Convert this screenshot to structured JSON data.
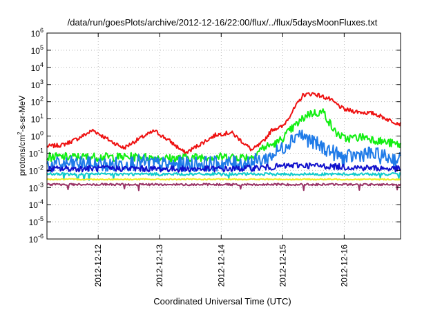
{
  "chart_data": {
    "type": "line",
    "title": "/data/run/goesPlots/archive/2012-12-16/22:00/flux/../flux/5daysMoonFluxes.txt",
    "xlabel": "Coordinated Universal Time (UTC)",
    "ylabel": {
      "base": "protons/cm",
      "sup": "2",
      "rest": "-s-sr-MeV"
    },
    "y_scale": "log",
    "ylim": [
      1e-06,
      1000000.0
    ],
    "xlim": [
      "2012-12-11 04:00",
      "2012-12-16 22:00"
    ],
    "grid": true,
    "legend": "none",
    "y_ticks": [
      {
        "value": 1e-06,
        "base": "10",
        "exp": "-6"
      },
      {
        "value": 1e-05,
        "base": "10",
        "exp": "-5"
      },
      {
        "value": 0.0001,
        "base": "10",
        "exp": "-4"
      },
      {
        "value": 0.001,
        "base": "10",
        "exp": "-3"
      },
      {
        "value": 0.01,
        "base": "10",
        "exp": "-2"
      },
      {
        "value": 0.1,
        "base": "10",
        "exp": "-1"
      },
      {
        "value": 1,
        "base": "10",
        "exp": "0"
      },
      {
        "value": 10,
        "base": "10",
        "exp": "1"
      },
      {
        "value": 100,
        "base": "10",
        "exp": "2"
      },
      {
        "value": 1000,
        "base": "10",
        "exp": "3"
      },
      {
        "value": 10000,
        "base": "10",
        "exp": "4"
      },
      {
        "value": 100000,
        "base": "10",
        "exp": "5"
      },
      {
        "value": 1000000,
        "base": "10",
        "exp": "6"
      }
    ],
    "x_ticks": [
      "2012-12-12",
      "2012-12-13",
      "2012-12-14",
      "2012-12-15",
      "2012-12-16"
    ],
    "series": [
      {
        "color": "#ee1111",
        "noise": 0.12,
        "x": [
          "2012-12-11 04:00",
          "2012-12-11 10:00",
          "2012-12-11 16:00",
          "2012-12-11 22:00",
          "2012-12-12 04:00",
          "2012-12-12 10:00",
          "2012-12-12 16:00",
          "2012-12-12 22:00",
          "2012-12-13 04:00",
          "2012-12-13 10:00",
          "2012-12-13 16:00",
          "2012-12-13 22:00",
          "2012-12-14 04:00",
          "2012-12-14 08:00",
          "2012-12-14 12:00",
          "2012-12-14 16:00",
          "2012-12-14 20:00",
          "2012-12-15 00:00",
          "2012-12-15 04:00",
          "2012-12-15 08:00",
          "2012-12-15 12:00",
          "2012-12-15 18:00",
          "2012-12-16 00:00",
          "2012-12-16 06:00",
          "2012-12-16 12:00",
          "2012-12-16 18:00",
          "2012-12-16 22:00"
        ],
        "y": [
          0.25,
          0.3,
          0.7,
          2.2,
          0.6,
          0.2,
          0.7,
          2.0,
          0.5,
          0.1,
          0.35,
          1.2,
          1.6,
          0.5,
          0.15,
          0.4,
          2.5,
          3.5,
          30,
          250,
          300,
          150,
          35,
          25,
          20,
          8,
          5
        ]
      },
      {
        "color": "#11ee11",
        "noise": 0.25,
        "x": [
          "2012-12-11 04:00",
          "2012-12-11 16:00",
          "2012-12-12 04:00",
          "2012-12-12 16:00",
          "2012-12-13 04:00",
          "2012-12-13 16:00",
          "2012-12-14 04:00",
          "2012-12-14 12:00",
          "2012-12-14 16:00",
          "2012-12-14 22:00",
          "2012-12-15 04:00",
          "2012-12-15 10:00",
          "2012-12-15 16:00",
          "2012-12-15 20:00",
          "2012-12-16 00:00",
          "2012-12-16 08:00",
          "2012-12-16 14:00",
          "2012-12-16 22:00"
        ],
        "y": [
          0.06,
          0.06,
          0.06,
          0.06,
          0.05,
          0.06,
          0.06,
          0.06,
          0.2,
          0.4,
          3,
          20,
          25,
          2,
          0.7,
          0.9,
          0.5,
          0.3
        ]
      },
      {
        "color": "#1f7be8",
        "noise": 0.45,
        "x": [
          "2012-12-11 04:00",
          "2012-12-11 16:00",
          "2012-12-12 04:00",
          "2012-12-12 16:00",
          "2012-12-13 04:00",
          "2012-12-13 16:00",
          "2012-12-14 04:00",
          "2012-12-14 12:00",
          "2012-12-14 18:00",
          "2012-12-15 00:00",
          "2012-12-15 06:00",
          "2012-12-15 12:00",
          "2012-12-15 18:00",
          "2012-12-16 00:00",
          "2012-12-16 08:00",
          "2012-12-16 16:00",
          "2012-12-16 22:00"
        ],
        "y": [
          0.02,
          0.025,
          0.02,
          0.03,
          0.02,
          0.025,
          0.025,
          0.03,
          0.05,
          0.2,
          1.5,
          0.4,
          0.15,
          0.05,
          0.1,
          0.06,
          0.04
        ]
      },
      {
        "color": "#1010cc",
        "noise": 0.18,
        "x": [
          "2012-12-11 04:00",
          "2012-12-12 04:00",
          "2012-12-13 04:00",
          "2012-12-14 04:00",
          "2012-12-14 18:00",
          "2012-12-15 06:00",
          "2012-12-16 04:00",
          "2012-12-16 22:00"
        ],
        "y": [
          0.012,
          0.013,
          0.012,
          0.012,
          0.015,
          0.02,
          0.015,
          0.012
        ]
      },
      {
        "color": "#11cccc",
        "noise": 0.08,
        "x": [
          "2012-12-11 04:00",
          "2012-12-16 22:00"
        ],
        "y": [
          0.006,
          0.006
        ]
      },
      {
        "color": "#eeee22",
        "noise": 0.04,
        "x": [
          "2012-12-11 04:00",
          "2012-12-16 22:00"
        ],
        "y": [
          0.003,
          0.003
        ]
      },
      {
        "color": "#993366",
        "noise": 0.06,
        "x": [
          "2012-12-11 04:00",
          "2012-12-16 22:00"
        ],
        "y": [
          0.0015,
          0.0015
        ]
      }
    ]
  }
}
